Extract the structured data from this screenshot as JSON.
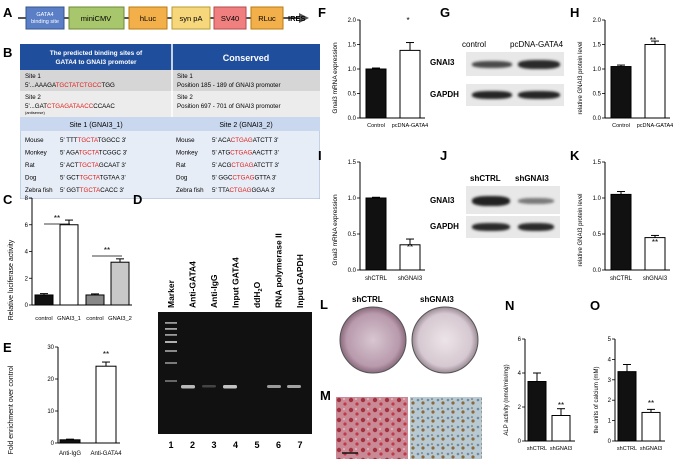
{
  "panels": {
    "A": {
      "label": "A",
      "elements": [
        "GATA4 binding site",
        "miniCMV",
        "hLuc",
        "syn pA",
        "SV40",
        "RLuc",
        "IRES"
      ]
    },
    "B": {
      "label": "B",
      "header_left": "The predicted binding sites of GATA4 to GNAI3 promoter",
      "header_right": "Conserved",
      "site1_title": "Site 1",
      "site1_seq_pre": "5'...AAAGA",
      "site1_seq_red": "TGCTATCTGCC",
      "site1_seq_post": "TGG",
      "site2_title": "Site 2",
      "site2_seq_pre": "5'...GAT",
      "site2_seq_red": "CTGAGATAACC",
      "site2_seq_post": "CCAAC",
      "antisense": "(antisense)",
      "cons_site1_title": "Site 1",
      "cons_site1_desc": "Position 185 - 189 of GNAI3 promoter",
      "cons_site2_title": "Site 2",
      "cons_site2_desc": "Position 697 - 701 of GNAI3 promoter",
      "sub_left": "Site 1 (GNAI3_1)",
      "sub_right": "Site 2 (GNAI3_2)",
      "species": [
        "Mouse",
        "Monkey",
        "Rat",
        "Dog",
        "Zebra fish"
      ],
      "left_seqs": [
        {
          "pre": "5' TTT",
          "red": "TGCTA",
          "post": "TGGCC  3'"
        },
        {
          "pre": "5' AGA",
          "red": "TGCTA",
          "post": "TCGGC  3'"
        },
        {
          "pre": "5' ACT",
          "red": "TGCTA",
          "post": "GCAAT  3'"
        },
        {
          "pre": "5' GCT",
          "red": "TGCTA",
          "post": "TGTAA  3'"
        },
        {
          "pre": "5' GGT",
          "red": "TGCTA",
          "post": "CACC  3'"
        }
      ],
      "right_seqs": [
        {
          "pre": "5' ACA",
          "red": "CTGAG",
          "post": "ATCTT  3'"
        },
        {
          "pre": "5' ATG",
          "red": "CTGAG",
          "post": "AACTT  3'"
        },
        {
          "pre": "5' ACG",
          "red": "CTGAG",
          "post": "ATCTT  3'"
        },
        {
          "pre": "5' GGC",
          "red": "CTGAG",
          "post": "GTTA  3'"
        },
        {
          "pre": "5' TTA",
          "red": "CTGAG",
          "post": "GGAA  3'"
        }
      ]
    },
    "C": {
      "label": "C",
      "ylabel": "Relative luciferase activity",
      "sig1": "**",
      "sig2": "**",
      "xlabels": [
        "control",
        "GNAI3_1",
        "control",
        "GNAI3_2"
      ]
    },
    "D": {
      "label": "D",
      "lanes": [
        "Marker",
        "Anti-GATA4",
        "Anti-IgG",
        "Input GATA4",
        "ddH2O",
        "RNA polymerase II",
        "Input GAPDH"
      ],
      "lane_numbers": [
        "1",
        "2",
        "3",
        "4",
        "5",
        "6",
        "7"
      ]
    },
    "E": {
      "label": "E",
      "ylabel": "Fold enrichment over control",
      "sig": "**",
      "xlabels": [
        "Anti-IgG",
        "Anti-GATA4"
      ]
    },
    "F": {
      "label": "F",
      "ylabel": "Gnai3 mRNA expression",
      "sig": "*",
      "xlabels": [
        "Control",
        "pcDNA-GATA4"
      ]
    },
    "G": {
      "label": "G",
      "col_labels": [
        "control",
        "pcDNA-GATA4"
      ],
      "row_labels": [
        "GNAI3",
        "GAPDH"
      ]
    },
    "H": {
      "label": "H",
      "ylabel": "relative GNAI3 protein level",
      "sig": "**",
      "xlabels": [
        "Control",
        "pcDNA-GATA4"
      ]
    },
    "I": {
      "label": "I",
      "ylabel": "Gnai3 mRNA expression",
      "sig": "**",
      "xlabels": [
        "shCTRL",
        "shGNAI3"
      ]
    },
    "J": {
      "label": "J",
      "col_labels": [
        "shCTRL",
        "shGNAI3"
      ],
      "row_labels": [
        "GNAI3",
        "GAPDH"
      ]
    },
    "K": {
      "label": "K",
      "ylabel": "relative GNAI3 protein level",
      "sig": "**",
      "xlabels": [
        "shCTRL",
        "shGNAI3"
      ]
    },
    "L": {
      "label": "L",
      "col_labels": [
        "shCTRL",
        "shGNAI3"
      ]
    },
    "M": {
      "label": "M"
    },
    "N": {
      "label": "N",
      "ylabel": "ALP activity (nmol/min/mg)",
      "sig": "**",
      "xlabels": [
        "shCTRL",
        "shGNAI3"
      ]
    },
    "O": {
      "label": "O",
      "ylabel": "the units of calcium (mM)",
      "sig": "**",
      "xlabels": [
        "shCTRL",
        "shGNAI3"
      ]
    }
  },
  "chart_data": [
    {
      "id": "C",
      "type": "bar",
      "categories": [
        "control",
        "GNAI3_1",
        "control",
        "GNAI3_2"
      ],
      "values": [
        0.75,
        6.0,
        0.75,
        3.2
      ],
      "errors": [
        0.1,
        0.35,
        0.08,
        0.25
      ],
      "fills": [
        "#111111",
        "#ffffff",
        "#888888",
        "#c8c8c8"
      ],
      "ylim": [
        0,
        8
      ],
      "yticks": [
        0,
        2,
        4,
        6,
        8
      ]
    },
    {
      "id": "E",
      "type": "bar",
      "categories": [
        "Anti-IgG",
        "Anti-GATA4"
      ],
      "values": [
        1.0,
        24.0
      ],
      "errors": [
        0.2,
        1.3
      ],
      "fills": [
        "#111111",
        "#ffffff"
      ],
      "ylim": [
        0,
        30
      ],
      "yticks": [
        0,
        10,
        20,
        30
      ]
    },
    {
      "id": "F",
      "type": "bar",
      "categories": [
        "Control",
        "pcDNA-GATA4"
      ],
      "values": [
        1.0,
        1.38
      ],
      "errors": [
        0.02,
        0.16
      ],
      "fills": [
        "#111111",
        "#ffffff"
      ],
      "ylim": [
        0,
        2.0
      ],
      "yticks": [
        0.0,
        0.5,
        1.0,
        1.5,
        2.0
      ]
    },
    {
      "id": "H",
      "type": "bar",
      "categories": [
        "Control",
        "pcDNA-GATA4"
      ],
      "values": [
        1.05,
        1.5
      ],
      "errors": [
        0.03,
        0.07
      ],
      "fills": [
        "#111111",
        "#ffffff"
      ],
      "ylim": [
        0,
        2.0
      ],
      "yticks": [
        0.0,
        0.5,
        1.0,
        1.5,
        2.0
      ]
    },
    {
      "id": "I",
      "type": "bar",
      "categories": [
        "shCTRL",
        "shGNAI3"
      ],
      "values": [
        1.0,
        0.35
      ],
      "errors": [
        0.01,
        0.08
      ],
      "fills": [
        "#111111",
        "#ffffff"
      ],
      "ylim": [
        0,
        1.5
      ],
      "yticks": [
        0.0,
        0.5,
        1.0,
        1.5
      ]
    },
    {
      "id": "K",
      "type": "bar",
      "categories": [
        "shCTRL",
        "shGNAI3"
      ],
      "values": [
        1.05,
        0.45
      ],
      "errors": [
        0.04,
        0.03
      ],
      "fills": [
        "#111111",
        "#ffffff"
      ],
      "ylim": [
        0,
        1.5
      ],
      "yticks": [
        0.0,
        0.5,
        1.0,
        1.5
      ]
    },
    {
      "id": "N",
      "type": "bar",
      "categories": [
        "shCTRL",
        "shGNAI3"
      ],
      "values": [
        3.5,
        1.5
      ],
      "errors": [
        0.5,
        0.4
      ],
      "fills": [
        "#111111",
        "#ffffff"
      ],
      "ylim": [
        0,
        6
      ],
      "yticks": [
        0,
        2,
        4,
        6
      ]
    },
    {
      "id": "O",
      "type": "bar",
      "categories": [
        "shCTRL",
        "shGNAI3"
      ],
      "values": [
        3.4,
        1.4
      ],
      "errors": [
        0.35,
        0.15
      ],
      "fills": [
        "#111111",
        "#ffffff"
      ],
      "ylim": [
        0,
        5
      ],
      "yticks": [
        0,
        1,
        2,
        3,
        4,
        5
      ]
    }
  ]
}
